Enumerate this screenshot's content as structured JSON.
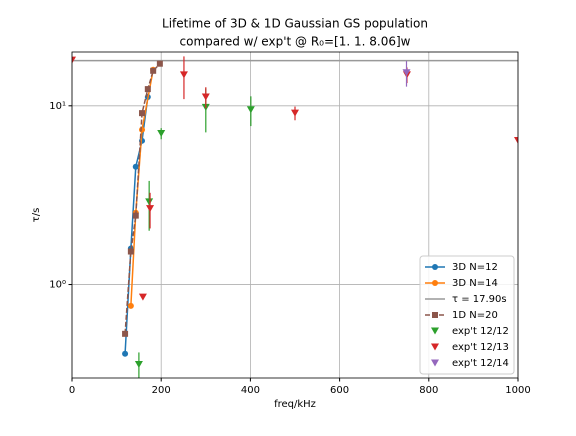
{
  "chart_data": {
    "type": "line",
    "title": "Lifetime of 3D & 1D Gaussian GS population",
    "subtitle": "compared w/ exp't @ R₀=[1.   1.   8.06]w",
    "x_label": "freq/kHz",
    "y_label": "τ/s",
    "xlim": [
      0,
      1000
    ],
    "xticks": [
      0,
      200,
      400,
      600,
      800,
      1000
    ],
    "ylim": [
      0.3,
      20
    ],
    "yscale": "log",
    "yticks": [
      {
        "value": 1,
        "label": "10⁰"
      },
      {
        "value": 10,
        "label": "10¹"
      }
    ],
    "grid": true,
    "legend": "lower right",
    "series": [
      {
        "name": "3D N=12",
        "color": "#1f77b4",
        "marker": "o",
        "linestyle": "solid",
        "x": [
          119,
          132,
          143,
          157,
          170
        ],
        "values": [
          0.41,
          1.59,
          4.56,
          6.37,
          11.2
        ]
      },
      {
        "name": "3D N=14",
        "color": "#ff7f0e",
        "marker": "o",
        "linestyle": "solid",
        "x": [
          132,
          143,
          157,
          182
        ],
        "values": [
          0.76,
          2.52,
          7.35,
          15.9
        ]
      },
      {
        "name": "τ = 17.90s",
        "color": "#999999",
        "marker": "none",
        "linestyle": "solid",
        "x": [
          0,
          1000
        ],
        "values": [
          17.9,
          17.9
        ]
      },
      {
        "name": "1D N=20",
        "color": "#8c564b",
        "marker": "s",
        "linestyle": "dashed",
        "x": [
          119,
          132,
          143,
          157,
          170,
          182,
          197
        ],
        "values": [
          0.53,
          1.53,
          2.43,
          9.1,
          12.4,
          15.7,
          17.2
        ]
      },
      {
        "name": "exp't 12/12",
        "color": "#2ca02c",
        "marker": "v",
        "linestyle": "none",
        "x": [
          150,
          173,
          200,
          300,
          401
        ],
        "values": [
          0.357,
          2.9,
          7.0,
          9.8,
          9.5
        ],
        "errors": [
          0.06,
          0.9,
          0.5,
          2.7,
          1.8
        ]
      },
      {
        "name": "exp't 12/13",
        "color": "#d62728",
        "marker": "v",
        "linestyle": "none",
        "x": [
          0,
          159,
          175,
          251,
          300,
          500,
          751,
          1000
        ],
        "values": [
          18,
          0.85,
          2.66,
          14.9,
          11.2,
          9.1,
          14.9,
          6.4
        ],
        "errors": [
          0,
          0,
          0.6,
          4,
          1.5,
          0.8,
          1.5,
          0
        ]
      },
      {
        "name": "exp't 12/14",
        "color": "#9467bd",
        "marker": "v",
        "linestyle": "none",
        "x": [
          750
        ],
        "values": [
          15.3
        ],
        "errors": [
          2.5
        ]
      }
    ]
  }
}
